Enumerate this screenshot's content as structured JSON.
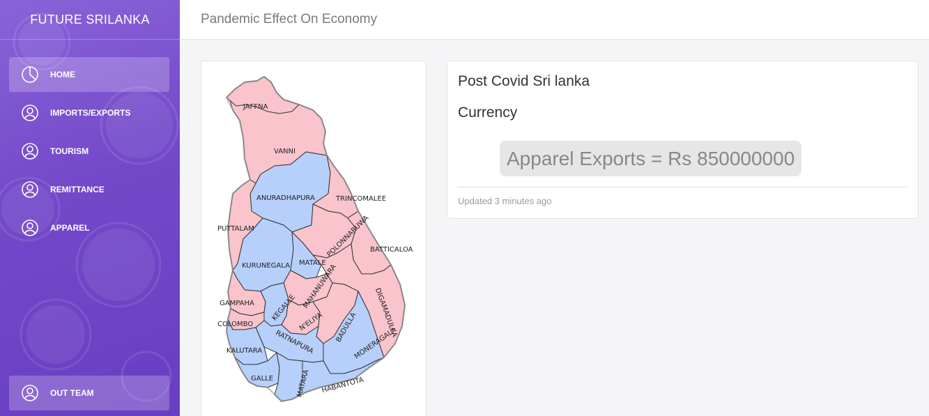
{
  "brand": "FUTURE SRILANKA",
  "header": {
    "title": "Pandemic Effect On Economy"
  },
  "sidebar": {
    "items": [
      {
        "label": "HOME",
        "icon": "pie-chart-icon",
        "active": true
      },
      {
        "label": "IMPORTS/EXPORTS",
        "icon": "user-icon",
        "active": false
      },
      {
        "label": "TOURISM",
        "icon": "user-icon",
        "active": false
      },
      {
        "label": "REMITTANCE",
        "icon": "user-icon",
        "active": false
      },
      {
        "label": "APPAREL",
        "icon": "user-icon",
        "active": false
      }
    ],
    "team": {
      "label": "OUT TEAM",
      "icon": "user-icon"
    }
  },
  "map": {
    "colors": {
      "pink": "#f9c4cc",
      "blue": "#b7cffb",
      "outline": "#9a9a9a"
    },
    "districts": {
      "jaffna": "JAFFNA",
      "vanni": "VANNI",
      "anuradhapura": "ANURADHAPURA",
      "trincomalee": "TRINCOMALEE",
      "puttalam": "PUTTALAM",
      "polonnaruwa": "POLONNARUWA",
      "batticaloa": "BATTICALOA",
      "kurunegala": "KURUNEGALA",
      "matale": "MATALE",
      "mahanuwara": "MAHANUWARA",
      "digamadulla": "DIGAMADULLA",
      "gampaha": "GAMPAHA",
      "kegalle": "KEGALLE",
      "neliya": "N'ELIYA",
      "badulla": "BADULLA",
      "colombo": "COLOMBO",
      "ratnapura": "RATNAPURA",
      "moneragala": "MONERAGALA",
      "kalutara": "KALUTARA",
      "galle": "GALLE",
      "matara": "MATARA",
      "habantota": "HABANTOTA"
    }
  },
  "info": {
    "heading": "Post Covid Sri lanka",
    "subheading": "Currency",
    "value": "Apparel Exports = Rs 850000000",
    "updated": "Updated 3 minutes ago"
  }
}
